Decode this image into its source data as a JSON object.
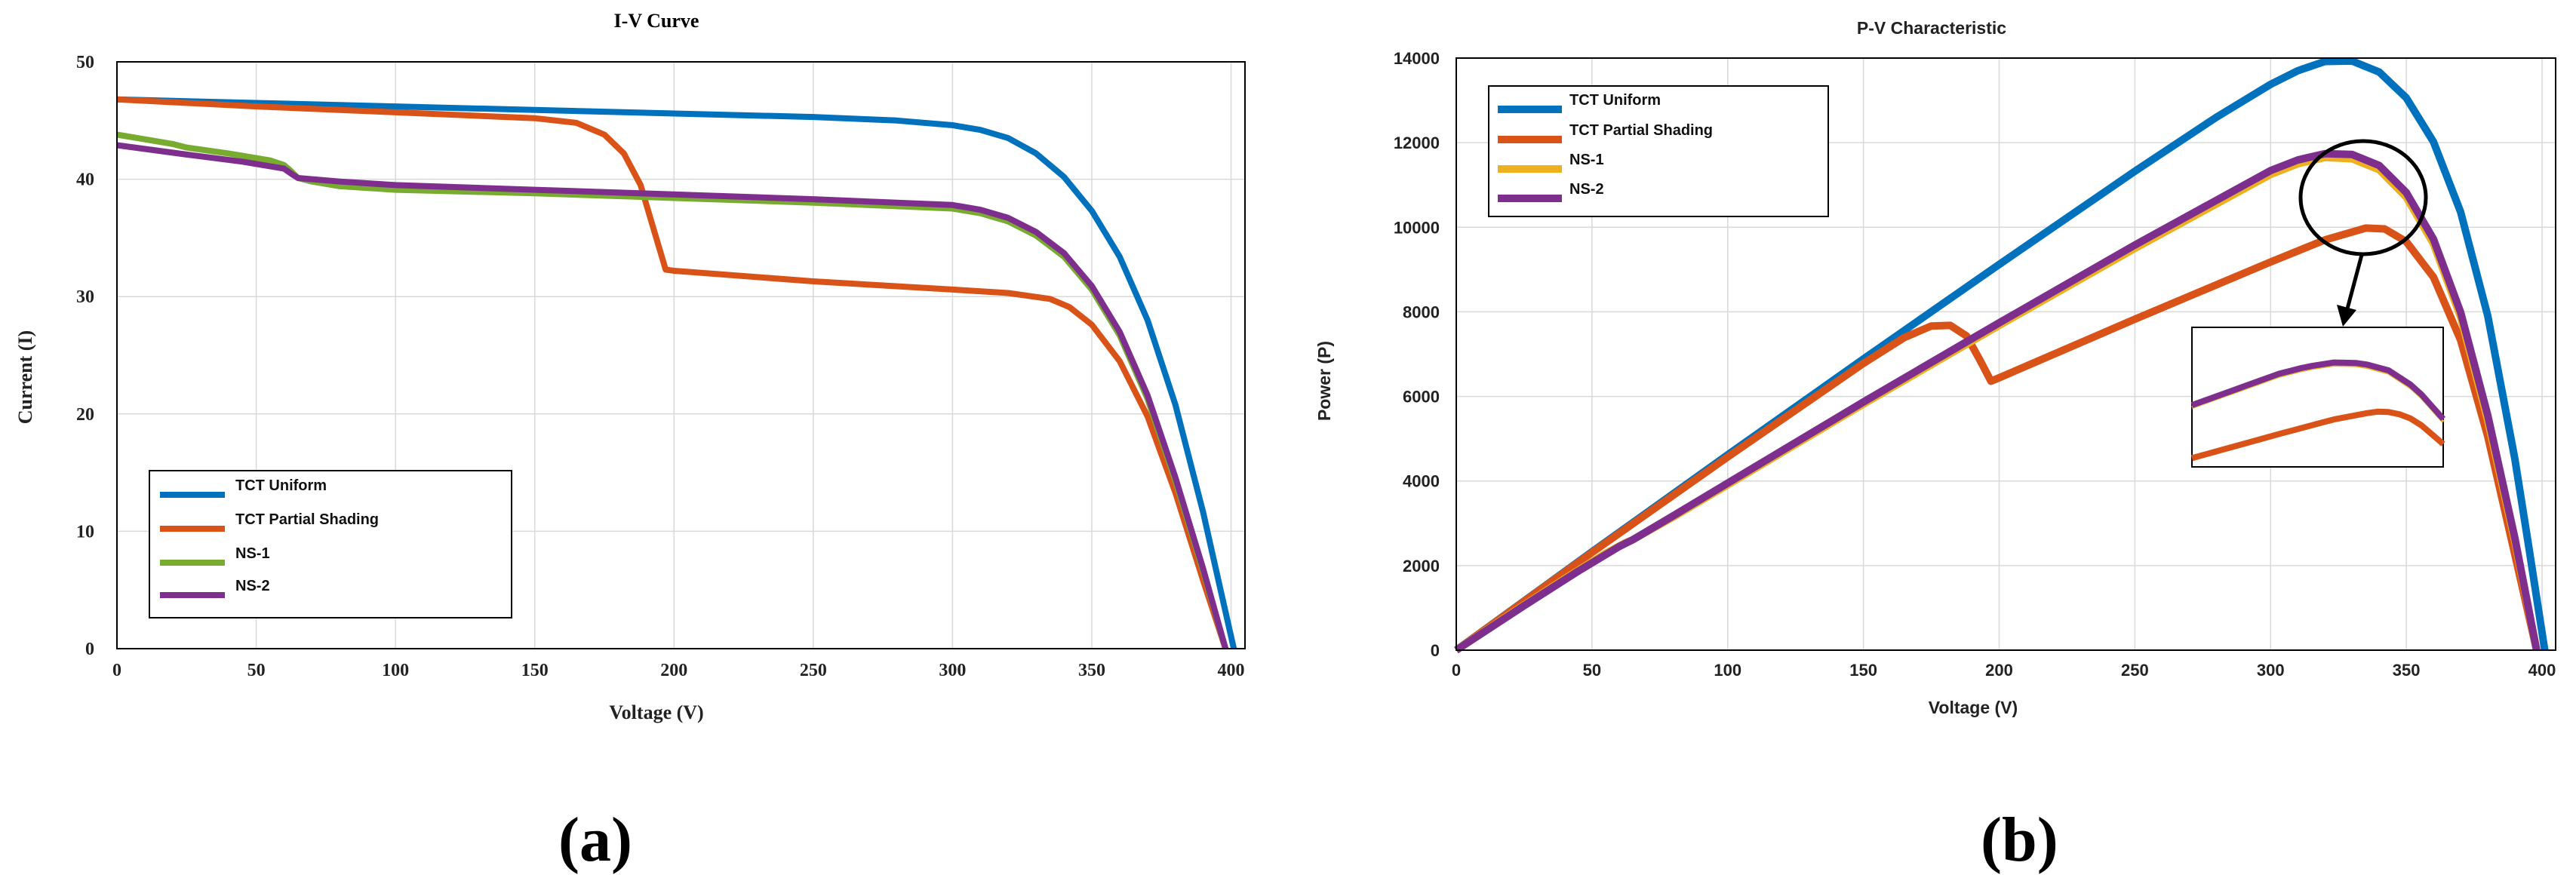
{
  "colors": {
    "tct_uniform": "#0072BD",
    "tct_partial": "#D95319",
    "ns1_iv": "#77AC30",
    "ns1_pv": "#EDB120",
    "ns2": "#7E2F8E",
    "grid": "#d9d9d9",
    "axis": "#000000"
  },
  "panel_labels": {
    "a": "(a)",
    "b": "(b)"
  },
  "chart_data": [
    {
      "id": "iv",
      "type": "line",
      "title": "I-V Curve",
      "xlabel": "Voltage (V)",
      "ylabel": "Current (I)",
      "xlim": [
        0,
        405
      ],
      "ylim": [
        0,
        50
      ],
      "xticks": [
        0,
        50,
        100,
        150,
        200,
        250,
        300,
        350,
        400
      ],
      "yticks": [
        0,
        10,
        20,
        30,
        40,
        50
      ],
      "grid": true,
      "legend_position": "bottom-left",
      "series": [
        {
          "name": "TCT Uniform",
          "color_key": "tct_uniform",
          "x": [
            0,
            50,
            100,
            150,
            200,
            250,
            280,
            300,
            310,
            320,
            330,
            340,
            350,
            360,
            370,
            380,
            390,
            395,
            401
          ],
          "y": [
            46.8,
            46.5,
            46.2,
            45.9,
            45.6,
            45.3,
            45.0,
            44.6,
            44.2,
            43.5,
            42.2,
            40.2,
            37.3,
            33.4,
            28.0,
            20.8,
            11.6,
            6.3,
            0
          ]
        },
        {
          "name": "TCT Partial Shading",
          "color_key": "tct_partial",
          "x": [
            0,
            50,
            100,
            150,
            165,
            175,
            182,
            188,
            193,
            197,
            200,
            250,
            300,
            320,
            335,
            342,
            350,
            360,
            370,
            380,
            390,
            398
          ],
          "y": [
            46.8,
            46.2,
            45.7,
            45.2,
            44.8,
            43.8,
            42.2,
            39.5,
            35.5,
            32.3,
            32.2,
            31.3,
            30.6,
            30.3,
            29.8,
            29.1,
            27.6,
            24.5,
            19.8,
            13.3,
            5.8,
            0
          ]
        },
        {
          "name": "NS-1",
          "color_key": "ns1_iv",
          "x": [
            0,
            10,
            20,
            25,
            40,
            55,
            60,
            62,
            65,
            70,
            80,
            100,
            150,
            200,
            250,
            300,
            310,
            320,
            330,
            340,
            350,
            360,
            370,
            380,
            390,
            398
          ],
          "y": [
            43.8,
            43.4,
            43.0,
            42.7,
            42.2,
            41.6,
            41.2,
            40.8,
            40.1,
            39.8,
            39.4,
            39.1,
            38.8,
            38.4,
            38.0,
            37.5,
            37.1,
            36.4,
            35.2,
            33.4,
            30.6,
            26.7,
            21.3,
            14.3,
            6.6,
            0
          ]
        },
        {
          "name": "NS-2",
          "color_key": "ns2",
          "x": [
            0,
            25,
            45,
            60,
            63,
            65,
            80,
            100,
            150,
            200,
            250,
            300,
            310,
            320,
            330,
            340,
            350,
            360,
            370,
            380,
            390,
            398
          ],
          "y": [
            42.9,
            42.1,
            41.5,
            40.9,
            40.4,
            40.1,
            39.8,
            39.5,
            39.1,
            38.7,
            38.3,
            37.8,
            37.4,
            36.7,
            35.5,
            33.7,
            30.9,
            27.0,
            21.6,
            14.6,
            6.8,
            0
          ]
        }
      ]
    },
    {
      "id": "pv",
      "type": "line",
      "title": "P-V Characteristic",
      "xlabel": "Voltage (V)",
      "ylabel": "Power (P)",
      "xlim": [
        0,
        405
      ],
      "ylim": [
        0,
        14000
      ],
      "xticks": [
        0,
        50,
        100,
        150,
        200,
        250,
        300,
        350,
        400
      ],
      "yticks": [
        0,
        2000,
        4000,
        6000,
        8000,
        10000,
        12000,
        14000
      ],
      "grid": true,
      "legend_position": "top-left",
      "annotation": "circled peak region with arrow to magnified inset",
      "series": [
        {
          "name": "TCT Uniform",
          "color_key": "tct_uniform",
          "x": [
            0,
            50,
            100,
            150,
            200,
            250,
            280,
            300,
            310,
            320,
            330,
            340,
            350,
            360,
            370,
            380,
            390,
            395,
            401
          ],
          "y": [
            0,
            2325,
            4620,
            6885,
            9120,
            11325,
            12600,
            13380,
            13700,
            13920,
            13930,
            13670,
            13060,
            12020,
            10360,
            7900,
            4520,
            2490,
            0
          ]
        },
        {
          "name": "TCT Partial Shading",
          "color_key": "tct_partial",
          "x": [
            0,
            50,
            100,
            150,
            165,
            175,
            182,
            188,
            193,
            197,
            200,
            250,
            300,
            320,
            335,
            342,
            350,
            360,
            370,
            380,
            390,
            398
          ],
          "y": [
            0,
            2310,
            4570,
            6780,
            7390,
            7665,
            7680,
            7430,
            6850,
            6360,
            6440,
            7825,
            9180,
            9700,
            9980,
            9960,
            9660,
            8820,
            7330,
            5050,
            2260,
            0
          ]
        },
        {
          "name": "NS-1",
          "color_key": "ns1_pv",
          "x": [
            0,
            20,
            40,
            55,
            62,
            65,
            80,
            100,
            150,
            200,
            250,
            300,
            310,
            320,
            330,
            340,
            350,
            360,
            370,
            380,
            390,
            398
          ],
          "y": [
            0,
            860,
            1690,
            2290,
            2530,
            2610,
            3150,
            3910,
            5820,
            7680,
            9500,
            11250,
            11500,
            11650,
            11620,
            11360,
            10710,
            9610,
            7880,
            5430,
            2570,
            0
          ]
        },
        {
          "name": "NS-2",
          "color_key": "ns2",
          "x": [
            0,
            25,
            45,
            60,
            65,
            80,
            100,
            150,
            200,
            250,
            300,
            310,
            320,
            330,
            340,
            350,
            360,
            370,
            380,
            390,
            398
          ],
          "y": [
            0,
            1050,
            1870,
            2450,
            2610,
            3180,
            3950,
            5870,
            7740,
            9580,
            11340,
            11590,
            11740,
            11720,
            11460,
            10820,
            9720,
            7990,
            5550,
            2650,
            0
          ]
        }
      ]
    }
  ]
}
